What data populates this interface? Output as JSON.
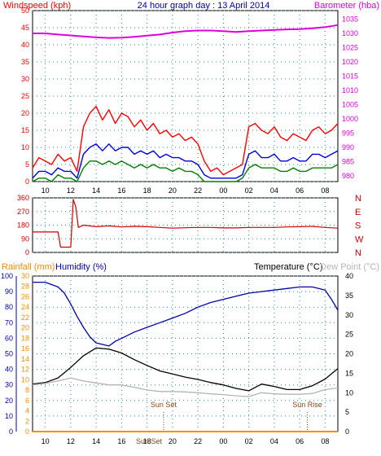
{
  "colors": {
    "frame": "#000000",
    "grid": "#2e8b8b",
    "wind_gust": "#ff0000",
    "wind_avg": "#0000dd",
    "wind_low": "#008000",
    "barometer": "#dd00dd",
    "wind_axis": "#ff0000",
    "direction": "#cc0000",
    "rain": "#ff8c00",
    "humidity": "#0000aa",
    "temperature": "#000000",
    "dewpoint": "#b4b4b4",
    "title": "#0000aa",
    "sun_marker": "#8b4513"
  },
  "chart_data": [
    {
      "type": "line",
      "id": "wind-baro",
      "title": "24 hour graph day : 13 April 2014",
      "left_label": "Windspeed (kph)",
      "right_label": "Barometer (hba)",
      "x_ticks": [
        "10",
        "12",
        "14",
        "16",
        "18",
        "20",
        "22",
        "00",
        "02",
        "04",
        "06",
        "08"
      ],
      "y_left_ticks": [
        "0",
        "5",
        "10",
        "15",
        "20",
        "25",
        "30",
        "35",
        "40",
        "45",
        "50"
      ],
      "y_left_range": [
        0,
        50
      ],
      "y_right_ticks": [
        "980",
        "985",
        "990",
        "995",
        "1000",
        "1005",
        "1010",
        "1015",
        "1020",
        "1025",
        "1030",
        "1035"
      ],
      "y_right_range": [
        978,
        1038
      ],
      "grid": true,
      "series": [
        {
          "name": "gust",
          "x": [
            9.0,
            9.5,
            10.0,
            10.5,
            11.0,
            11.5,
            12.0,
            12.5,
            13.0,
            13.5,
            14.0,
            14.5,
            15.0,
            15.5,
            16.0,
            16.5,
            17.0,
            17.5,
            18.0,
            18.5,
            19.0,
            19.5,
            20.0,
            20.5,
            21.0,
            21.5,
            22.0,
            22.5,
            23.0,
            23.5,
            24.0,
            24.5,
            25.0,
            25.5,
            26.0,
            26.5,
            27.0,
            27.5,
            28.0,
            28.5,
            29.0,
            29.5,
            30.0,
            30.5,
            31.0,
            31.5,
            32.0,
            32.5,
            33.0
          ],
          "values": [
            4,
            7,
            6,
            5,
            8,
            6,
            7,
            3,
            16,
            20,
            22,
            18,
            21,
            17,
            20,
            19,
            16,
            18,
            15,
            17,
            14,
            15,
            13,
            14,
            12,
            13,
            11,
            6,
            3,
            4,
            2,
            3,
            4,
            5,
            16,
            17,
            15,
            14,
            16,
            13,
            12,
            14,
            13,
            12,
            15,
            16,
            14,
            15,
            17
          ]
        },
        {
          "name": "average",
          "x": [
            9.0,
            9.5,
            10.0,
            10.5,
            11.0,
            11.5,
            12.0,
            12.5,
            13.0,
            13.5,
            14.0,
            14.5,
            15.0,
            15.5,
            16.0,
            16.5,
            17.0,
            17.5,
            18.0,
            18.5,
            19.0,
            19.5,
            20.0,
            20.5,
            21.0,
            21.5,
            22.0,
            22.5,
            23.0,
            23.5,
            24.0,
            24.5,
            25.0,
            25.5,
            26.0,
            26.5,
            27.0,
            27.5,
            28.0,
            28.5,
            29.0,
            29.5,
            30.0,
            30.5,
            31.0,
            31.5,
            32.0,
            32.5,
            33.0
          ],
          "values": [
            1,
            3,
            3,
            2,
            4,
            3,
            3,
            1,
            8,
            10,
            11,
            9,
            11,
            9,
            10,
            10,
            8,
            9,
            8,
            9,
            7,
            8,
            7,
            7,
            6,
            6,
            5,
            2,
            1,
            1,
            1,
            1,
            1,
            2,
            8,
            9,
            7,
            7,
            8,
            6,
            6,
            7,
            6,
            6,
            8,
            8,
            7,
            8,
            9
          ]
        },
        {
          "name": "low",
          "x": [
            9.0,
            9.5,
            10.0,
            10.5,
            11.0,
            11.5,
            12.0,
            12.5,
            13.0,
            13.5,
            14.0,
            14.5,
            15.0,
            15.5,
            16.0,
            16.5,
            17.0,
            17.5,
            18.0,
            18.5,
            19.0,
            19.5,
            20.0,
            20.5,
            21.0,
            21.5,
            22.0,
            22.5,
            23.0,
            23.5,
            24.0,
            24.5,
            25.0,
            25.5,
            26.0,
            26.5,
            27.0,
            27.5,
            28.0,
            28.5,
            29.0,
            29.5,
            30.0,
            30.5,
            31.0,
            31.5,
            32.0,
            32.5,
            33.0
          ],
          "values": [
            0,
            1,
            1,
            0,
            2,
            1,
            1,
            0,
            4,
            6,
            6,
            5,
            6,
            5,
            6,
            5,
            4,
            5,
            4,
            5,
            4,
            4,
            3,
            4,
            3,
            3,
            2,
            0,
            0,
            0,
            0,
            0,
            0,
            1,
            4,
            5,
            4,
            4,
            4,
            3,
            3,
            4,
            3,
            3,
            4,
            4,
            4,
            4,
            5
          ]
        },
        {
          "name": "barometer",
          "axis": "right",
          "x": [
            9.0,
            10.0,
            11.0,
            12.0,
            13.0,
            14.0,
            15.0,
            16.0,
            17.0,
            18.0,
            19.0,
            20.0,
            21.0,
            22.0,
            23.0,
            24.0,
            25.0,
            26.0,
            27.0,
            28.0,
            29.0,
            30.0,
            31.0,
            32.0,
            33.0
          ],
          "values": [
            1030,
            1030,
            1029.6,
            1029.3,
            1028.9,
            1028.6,
            1028.4,
            1028.5,
            1028.8,
            1029.2,
            1029.6,
            1030.3,
            1030.8,
            1031.0,
            1031.0,
            1030.8,
            1030.5,
            1030.8,
            1031.0,
            1031.2,
            1031.4,
            1031.5,
            1031.8,
            1032.2,
            1032.9
          ]
        }
      ]
    },
    {
      "type": "line",
      "id": "wind-direction",
      "x_ticks": [
        "10",
        "12",
        "14",
        "16",
        "18",
        "20",
        "22",
        "00",
        "02",
        "04",
        "06",
        "08"
      ],
      "y_ticks": [
        "0",
        "90",
        "180",
        "270",
        "360"
      ],
      "y_range": [
        0,
        360
      ],
      "right_ticks": [
        "N",
        "W",
        "S",
        "E",
        "N"
      ],
      "grid": true,
      "series": [
        {
          "name": "direction",
          "x": [
            9.0,
            11.0,
            11.2,
            12.0,
            12.2,
            12.4,
            12.6,
            13.0,
            14.0,
            15.0,
            16.0,
            17.0,
            18.0,
            19.0,
            20.0,
            21.0,
            22.0,
            23.0,
            24.0,
            25.0,
            26.0,
            27.0,
            28.0,
            29.0,
            30.0,
            31.0,
            32.0,
            33.0
          ],
          "values": [
            135,
            135,
            35,
            35,
            350,
            300,
            165,
            180,
            170,
            175,
            168,
            172,
            170,
            165,
            160,
            163,
            165,
            165,
            162,
            162,
            165,
            165,
            165,
            168,
            170,
            172,
            165,
            160
          ]
        }
      ]
    },
    {
      "type": "line",
      "id": "temp-humidity",
      "left_label_rain": "Rainfall (mm)",
      "left_label_humidity": "Humidity (%)",
      "right_label_temperature": "Temperature (°C)",
      "right_label_dewpoint": "Dew Point (°C)",
      "x_ticks": [
        "10",
        "12",
        "14",
        "16",
        "18",
        "20",
        "22",
        "00",
        "02",
        "04",
        "06",
        "08"
      ],
      "humidity_ticks": [
        "0",
        "10",
        "20",
        "30",
        "40",
        "50",
        "60",
        "70",
        "80",
        "90",
        "100"
      ],
      "humidity_range": [
        0,
        100
      ],
      "rain_ticks": [
        "0",
        "2",
        "4",
        "6",
        "8",
        "10",
        "12",
        "14",
        "16",
        "18",
        "20",
        "22",
        "24",
        "26",
        "28",
        "30"
      ],
      "rain_range": [
        0,
        30
      ],
      "temp_ticks": [
        "0",
        "5",
        "10",
        "15",
        "20",
        "25",
        "30",
        "35",
        "40"
      ],
      "temp_range": [
        0,
        40
      ],
      "annotations": [
        {
          "label": "Sun Set",
          "x": 19.3
        },
        {
          "label": "Sun Rise",
          "x": 30.6
        }
      ],
      "bottom_marker": "Sun Set",
      "grid": true,
      "series": [
        {
          "name": "humidity",
          "axis": "left",
          "x": [
            9.0,
            10.0,
            11.0,
            11.5,
            12.0,
            12.5,
            13.0,
            13.5,
            14.0,
            14.5,
            15.0,
            15.5,
            16.0,
            17.0,
            18.0,
            19.0,
            20.0,
            21.0,
            22.0,
            23.0,
            24.0,
            25.0,
            26.0,
            27.0,
            28.0,
            29.0,
            30.0,
            31.0,
            32.0,
            32.5,
            33.0
          ],
          "values": [
            96,
            96,
            93,
            89,
            82,
            74,
            67,
            61,
            57,
            56,
            55,
            58,
            60,
            64,
            67,
            70,
            73,
            76,
            80,
            83,
            85,
            87,
            89,
            90,
            91,
            92,
            93,
            93,
            91,
            85,
            78
          ]
        },
        {
          "name": "temperature",
          "axis": "right",
          "x": [
            9.0,
            10.0,
            11.0,
            12.0,
            13.0,
            14.0,
            15.0,
            16.0,
            17.0,
            18.0,
            19.0,
            20.0,
            21.0,
            22.0,
            23.0,
            24.0,
            25.0,
            26.0,
            27.0,
            28.0,
            29.0,
            30.0,
            31.0,
            32.0,
            33.0
          ],
          "values": [
            12.2,
            12.6,
            13.8,
            16.5,
            19.5,
            21.5,
            21.2,
            20.2,
            18.5,
            17.0,
            15.6,
            14.8,
            14.0,
            13.4,
            12.6,
            12.0,
            11.1,
            10.5,
            12.2,
            11.6,
            10.8,
            10.8,
            11.8,
            13.5,
            16.2
          ]
        },
        {
          "name": "dewpoint",
          "axis": "right",
          "x": [
            9.0,
            10.0,
            11.0,
            12.0,
            13.0,
            14.0,
            15.0,
            16.0,
            17.0,
            18.0,
            19.0,
            20.0,
            21.0,
            22.0,
            23.0,
            24.0,
            25.0,
            26.0,
            27.0,
            28.0,
            29.0,
            30.0,
            31.0,
            32.0,
            33.0
          ],
          "values": [
            12.0,
            12.4,
            13.0,
            13.8,
            13.0,
            12.5,
            12.0,
            12.0,
            11.4,
            10.7,
            10.3,
            10.3,
            10.2,
            10.0,
            9.7,
            9.5,
            9.2,
            9.0,
            10.0,
            9.7,
            9.6,
            9.6,
            9.8,
            10.8,
            11.2
          ]
        },
        {
          "name": "rainfall",
          "axis": "left-rain",
          "x": [
            9.0,
            33.0
          ],
          "values": [
            0,
            0
          ]
        }
      ]
    }
  ]
}
